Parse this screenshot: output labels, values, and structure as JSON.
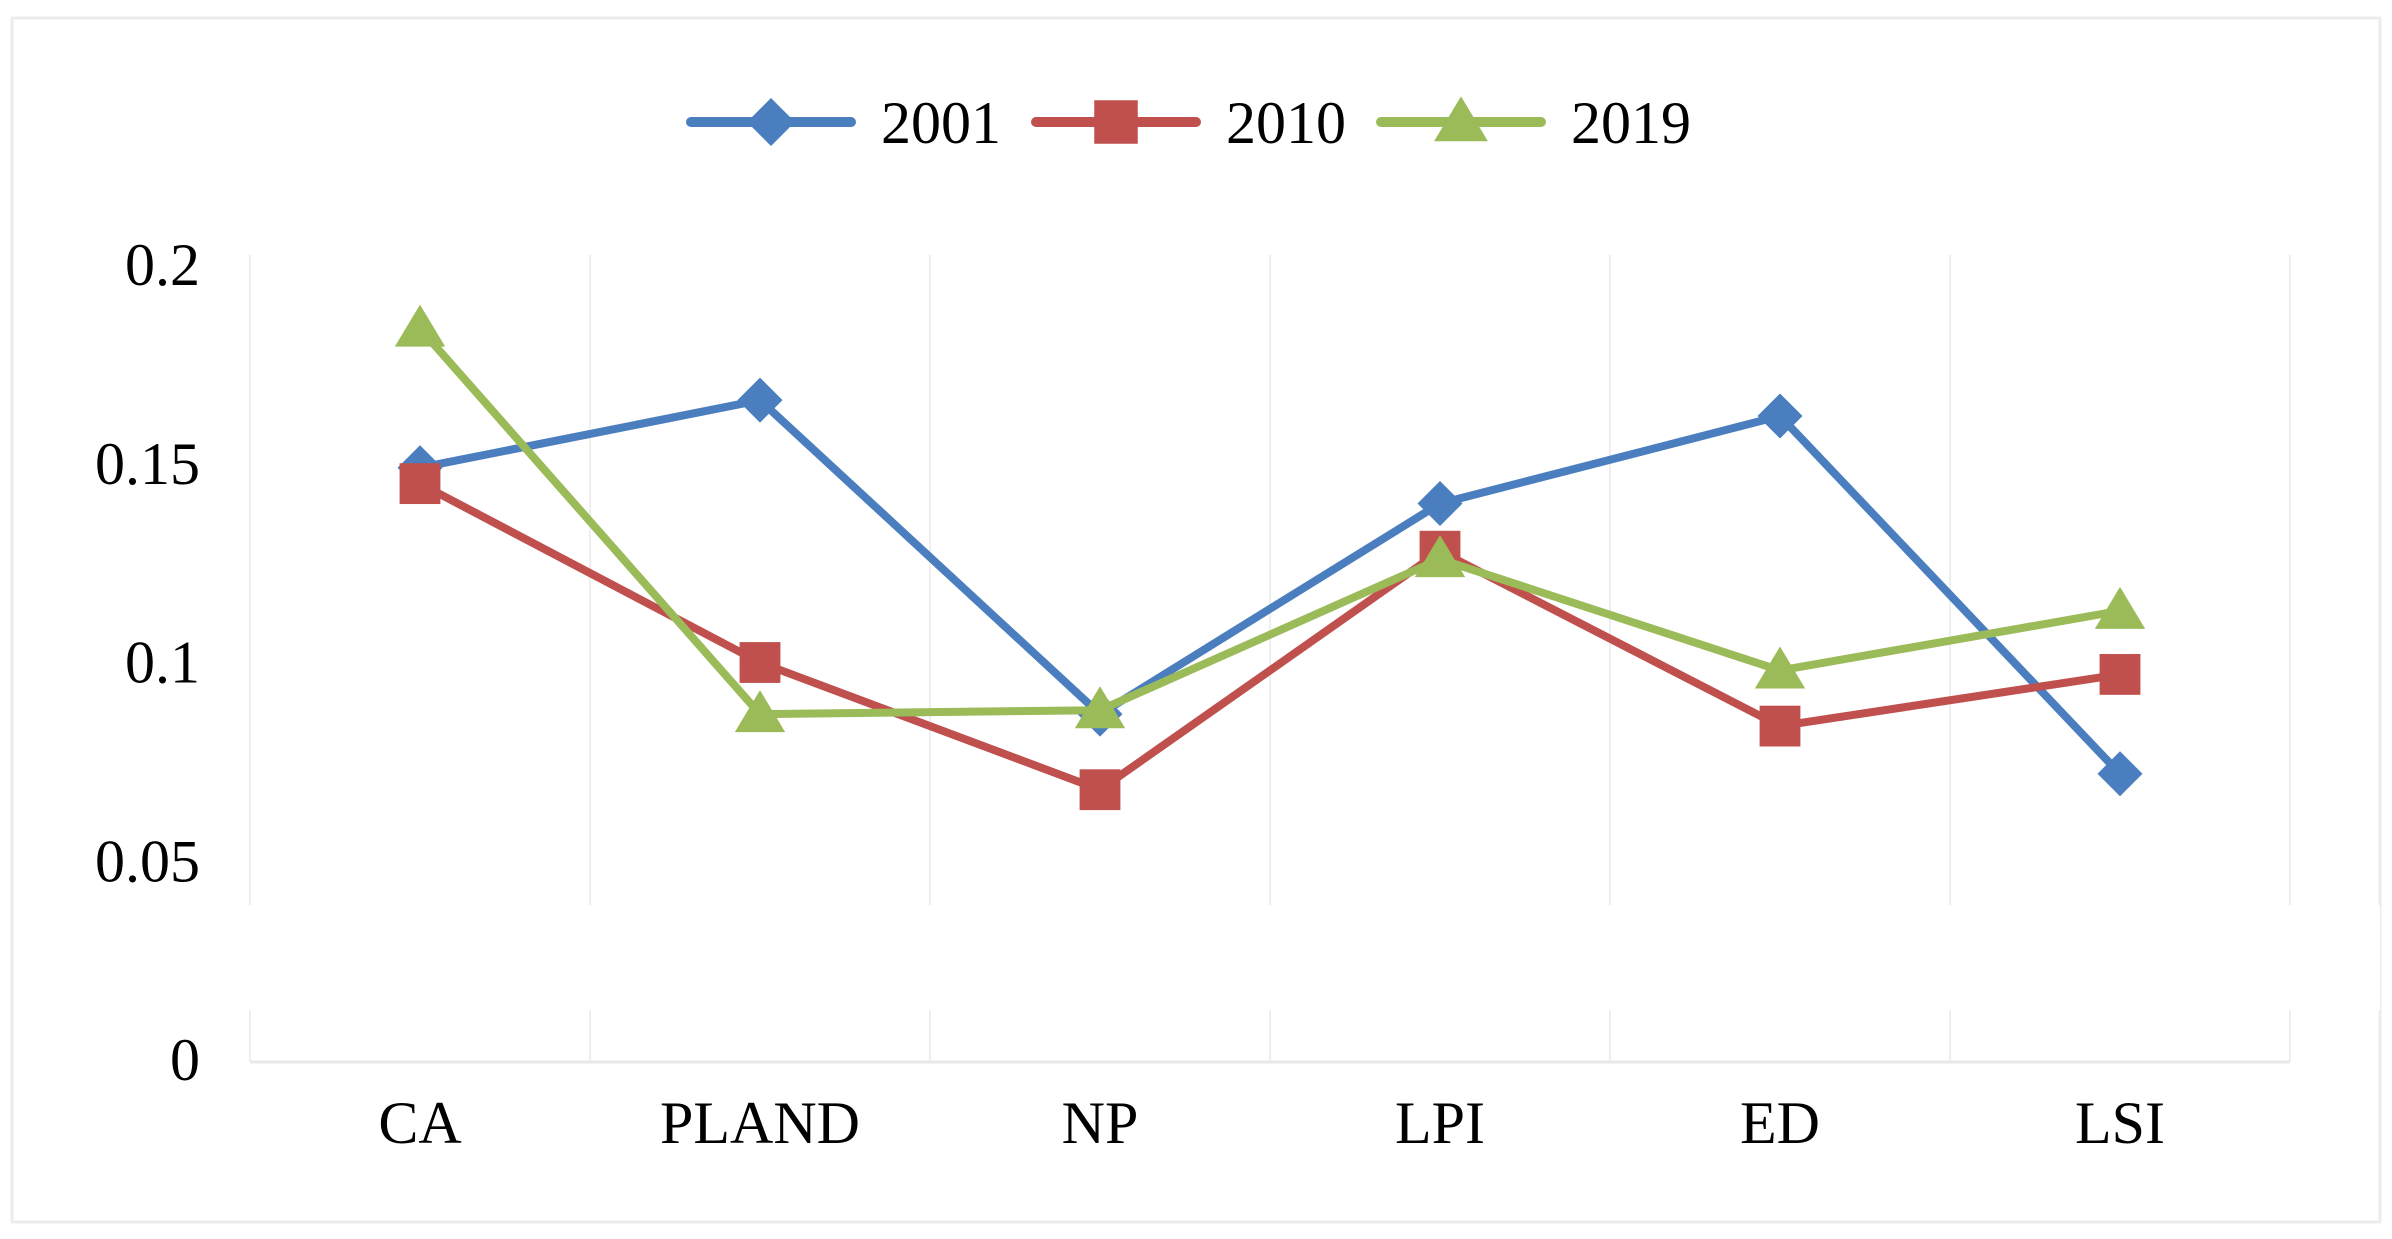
{
  "chart_data": {
    "type": "line",
    "title": "",
    "xlabel": "",
    "ylabel": "",
    "categories": [
      "CA",
      "PLAND",
      "NP",
      "LPI",
      "ED",
      "LSI"
    ],
    "series": [
      {
        "name": "2001",
        "color": "#4a7ebf",
        "marker": "diamond",
        "values": [
          0.149,
          0.166,
          0.087,
          0.14,
          0.162,
          0.072
        ]
      },
      {
        "name": "2010",
        "color": "#c0504d",
        "marker": "square",
        "values": [
          0.145,
          0.1,
          0.068,
          0.128,
          0.084,
          0.097
        ]
      },
      {
        "name": "2019",
        "color": "#9bbb59",
        "marker": "triangle",
        "values": [
          0.184,
          0.087,
          0.088,
          0.126,
          0.098,
          0.113
        ]
      }
    ],
    "yticks": [
      {
        "value": 0.2,
        "label": "0.2"
      },
      {
        "value": 0.15,
        "label": "0.15"
      },
      {
        "value": 0.1,
        "label": "0.1"
      },
      {
        "value": 0.05,
        "label": "0.05"
      },
      {
        "value": 0,
        "label": "0"
      }
    ],
    "ylim": [
      0,
      0.2
    ],
    "legend_position": "top-center",
    "grid": "vertical"
  }
}
